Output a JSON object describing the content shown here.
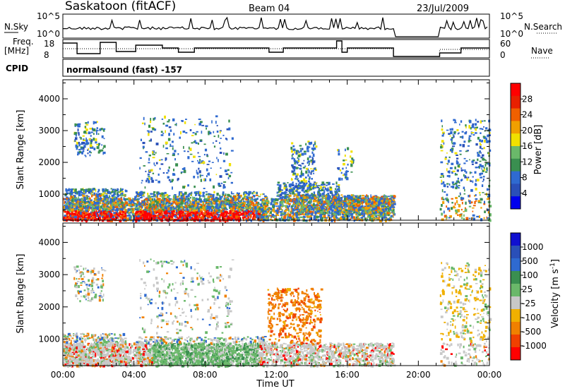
{
  "header": {
    "station": "Saskatoon (fitACF)",
    "beam": "Beam 04",
    "date": "23/Jul/2009"
  },
  "strips": {
    "nsky_label": "N.Sky",
    "nsky_ticks": [
      "10^5",
      "10^0"
    ],
    "nsearch_label": "N.Search",
    "nsearch_ticks": [
      "10^5",
      "10^0"
    ],
    "freq_label_line1": "Freq.",
    "freq_label_line2": "[MHz]",
    "freq_ticks": [
      "18",
      "8"
    ],
    "nave_label": "Nave",
    "nave_ticks": [
      "60",
      "0"
    ],
    "cpid_label": "CPID",
    "cpid_text": "normalsound (fast) -157"
  },
  "chart_data": [
    {
      "type": "heatmap",
      "name": "power",
      "ylabel": "Slant Range [km]",
      "xlabel": "Time UT",
      "xticks": [
        "00:00",
        "04:00",
        "08:00",
        "12:00",
        "16:00",
        "20:00",
        "00:00"
      ],
      "x_range_hours": [
        0,
        24
      ],
      "ylim": [
        180,
        4600
      ],
      "yticks": [
        1000,
        2000,
        3000,
        4000
      ],
      "colorbar": {
        "label": "Power [dB]",
        "ticks": [
          "4",
          "8",
          "12",
          "16",
          "20",
          "24",
          "28"
        ],
        "colors": [
          "#0000ee",
          "#2a4fb8",
          "#2f6ad0",
          "#3a8f50",
          "#6ab86a",
          "#f0e000",
          "#f0a000",
          "#f06000",
          "#e82000",
          "#ff0000"
        ]
      },
      "data_gap_hours": [
        [
          18.6,
          21.2
        ]
      ]
    },
    {
      "type": "heatmap",
      "name": "velocity",
      "ylabel": "Slant Range [km]",
      "xlabel": "Time UT",
      "xticks": [
        "00:00",
        "04:00",
        "08:00",
        "12:00",
        "16:00",
        "20:00",
        "00:00"
      ],
      "x_range_hours": [
        0,
        24
      ],
      "ylim": [
        180,
        4600
      ],
      "yticks": [
        1000,
        2000,
        3000,
        4000
      ],
      "colorbar": {
        "label_main": "Velocity [m s",
        "label_sup": "-1",
        "label_end": "]",
        "ticks": [
          "1000",
          "500",
          "100",
          "25",
          "-25",
          "-100",
          "-500",
          "-1000"
        ],
        "colors": [
          "#1010d0",
          "#2a4fb8",
          "#2f6ad0",
          "#3a8f50",
          "#6ab86a",
          "#c8c8c8",
          "#f0b000",
          "#f08000",
          "#f04000",
          "#ff0000"
        ]
      },
      "data_gap_hours": [
        [
          18.6,
          21.2
        ]
      ]
    }
  ],
  "axis": {
    "xlabel": "Time UT"
  }
}
